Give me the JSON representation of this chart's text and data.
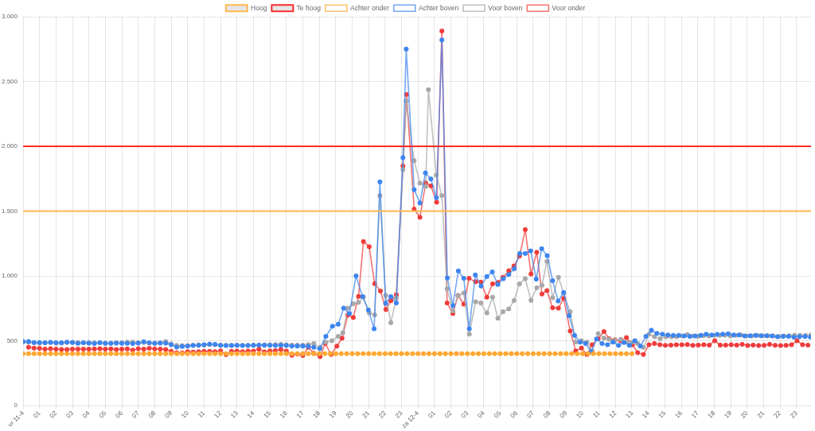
{
  "chart_data": {
    "type": "line",
    "legend": "top",
    "grid": true,
    "marker": "circle",
    "line_style": "solid",
    "xlim": [
      "--04-11T00:00",
      "--04-12T23:53"
    ],
    "ylim": [
      0,
      3000
    ],
    "xticks": [
      {
        "value": "--04-11T00:00",
        "label": "vr 11-4"
      },
      {
        "value": "--04-11T01:00",
        "label": "01"
      },
      {
        "value": "--04-11T02:00",
        "label": "02"
      },
      {
        "value": "--04-11T03:00",
        "label": "03"
      },
      {
        "value": "--04-11T04:00",
        "label": "04"
      },
      {
        "value": "--04-11T05:00",
        "label": "05"
      },
      {
        "value": "--04-11T06:00",
        "label": "06"
      },
      {
        "value": "--04-11T07:00",
        "label": "07"
      },
      {
        "value": "--04-11T08:00",
        "label": "08"
      },
      {
        "value": "--04-11T09:00",
        "label": "09"
      },
      {
        "value": "--04-11T10:00",
        "label": "10"
      },
      {
        "value": "--04-11T11:00",
        "label": "11"
      },
      {
        "value": "--04-11T12:00",
        "label": "12"
      },
      {
        "value": "--04-11T13:00",
        "label": "13"
      },
      {
        "value": "--04-11T14:00",
        "label": "14"
      },
      {
        "value": "--04-11T15:00",
        "label": "15"
      },
      {
        "value": "--04-11T16:00",
        "label": "16"
      },
      {
        "value": "--04-11T17:00",
        "label": "17"
      },
      {
        "value": "--04-11T18:00",
        "label": "18"
      },
      {
        "value": "--04-11T19:00",
        "label": "19"
      },
      {
        "value": "--04-11T20:00",
        "label": "20"
      },
      {
        "value": "--04-11T21:00",
        "label": "21"
      },
      {
        "value": "--04-11T22:00",
        "label": "22"
      },
      {
        "value": "--04-11T23:00",
        "label": "23"
      },
      {
        "value": "--04-12T00:00",
        "label": "za 12-4"
      },
      {
        "value": "--04-12T01:00",
        "label": "01"
      },
      {
        "value": "--04-12T02:00",
        "label": "02"
      },
      {
        "value": "--04-12T03:00",
        "label": "03"
      },
      {
        "value": "--04-12T04:00",
        "label": "04"
      },
      {
        "value": "--04-12T05:00",
        "label": "05"
      },
      {
        "value": "--04-12T06:00",
        "label": "06"
      },
      {
        "value": "--04-12T07:00",
        "label": "07"
      },
      {
        "value": "--04-12T08:00",
        "label": "08"
      },
      {
        "value": "--04-12T09:00",
        "label": "09"
      },
      {
        "value": "--04-12T10:00",
        "label": "10"
      },
      {
        "value": "--04-12T11:00",
        "label": "11"
      },
      {
        "value": "--04-12T12:00",
        "label": "12"
      },
      {
        "value": "--04-12T13:00",
        "label": "13"
      },
      {
        "value": "--04-12T14:00",
        "label": "14"
      },
      {
        "value": "--04-12T15:00",
        "label": "15"
      },
      {
        "value": "--04-12T16:00",
        "label": "16"
      },
      {
        "value": "--04-12T17:00",
        "label": "17"
      },
      {
        "value": "--04-12T18:00",
        "label": "18"
      },
      {
        "value": "--04-12T19:00",
        "label": "19"
      },
      {
        "value": "--04-12T20:00",
        "label": "20"
      },
      {
        "value": "--04-12T21:00",
        "label": "21"
      },
      {
        "value": "--04-12T22:00",
        "label": "22"
      },
      {
        "value": "--04-12T23:00",
        "label": "23"
      }
    ],
    "yticks": [
      0,
      500,
      {
        "value": 1000,
        "label": "1.000"
      },
      {
        "value": 1500,
        "label": "1.500"
      },
      {
        "value": 2000,
        "label": "2.000"
      },
      {
        "value": 2500,
        "label": "2.500"
      },
      {
        "value": 3000,
        "label": "3.000"
      }
    ],
    "ref_lines": [
      {
        "axis": "y",
        "value": 1500,
        "label": "Hoog",
        "color": "#ffb74d"
      },
      {
        "axis": "y",
        "value": 2000,
        "label": "Te hoog",
        "color": "#ff2a2a"
      }
    ],
    "series": [
      {
        "name": "Achter onder",
        "color": "#ffa733",
        "x": [
          "--04-11T00:00",
          "--04-11T00:20",
          "--04-11T00:40",
          "--04-11T01:00",
          "--04-11T01:20",
          "--04-11T01:40",
          "--04-11T02:00",
          "--04-11T02:20",
          "--04-11T02:40",
          "--04-11T03:00",
          "--04-11T03:20",
          "--04-11T03:40",
          "--04-11T04:00",
          "--04-11T04:20",
          "--04-11T04:40",
          "--04-11T05:00",
          "--04-11T05:20",
          "--04-11T05:40",
          "--04-11T06:00",
          "--04-11T06:20",
          "--04-11T06:40",
          "--04-11T07:00",
          "--04-11T07:20",
          "--04-11T07:40",
          "--04-11T08:00",
          "--04-11T08:20",
          "--04-11T08:40",
          "--04-11T09:00",
          "--04-11T09:20",
          "--04-11T09:40",
          "--04-11T10:00",
          "--04-11T10:20",
          "--04-11T10:40",
          "--04-11T11:00",
          "--04-11T11:20",
          "--04-11T11:40",
          "--04-11T12:00",
          "--04-11T12:20",
          "--04-11T12:40",
          "--04-11T13:00",
          "--04-11T13:20",
          "--04-11T13:40",
          "--04-11T14:00",
          "--04-11T14:20",
          "--04-11T14:40",
          "--04-11T15:00",
          "--04-11T15:20",
          "--04-11T15:40",
          "--04-11T16:00",
          "--04-11T16:20",
          "--04-11T16:40",
          "--04-11T17:00",
          "--04-11T17:20",
          "--04-11T17:40",
          "--04-11T18:00",
          "--04-11T18:20",
          "--04-11T18:40",
          "--04-11T19:00",
          "--04-11T19:20",
          "--04-11T19:40",
          "--04-11T20:00",
          "--04-11T20:20",
          "--04-11T20:40",
          "--04-11T21:00",
          "--04-11T21:20",
          "--04-11T21:40",
          "--04-11T22:00",
          "--04-11T22:20",
          "--04-11T22:40",
          "--04-11T23:00",
          "--04-11T23:20",
          "--04-11T23:40",
          "--04-12T00:00",
          "--04-12T00:20",
          "--04-12T00:40",
          "--04-12T01:00",
          "--04-12T01:20",
          "--04-12T01:40",
          "--04-12T02:00",
          "--04-12T02:20",
          "--04-12T02:40",
          "--04-12T03:00",
          "--04-12T03:20",
          "--04-12T03:40",
          "--04-12T04:00",
          "--04-12T04:20",
          "--04-12T04:40",
          "--04-12T05:00",
          "--04-12T05:20",
          "--04-12T05:40",
          "--04-12T06:00",
          "--04-12T06:20",
          "--04-12T06:40",
          "--04-12T07:00",
          "--04-12T07:20",
          "--04-12T07:40",
          "--04-12T08:00",
          "--04-12T08:20",
          "--04-12T08:40",
          "--04-12T09:00",
          "--04-12T09:20",
          "--04-12T09:40",
          "--04-12T10:00",
          "--04-12T10:20",
          "--04-12T10:40",
          "--04-12T11:00",
          "--04-12T11:20",
          "--04-12T11:40",
          "--04-12T12:00",
          "--04-12T12:20",
          "--04-12T12:40",
          "--04-12T13:00"
        ],
        "values": [
          400,
          400,
          400,
          400,
          400,
          400,
          400,
          400,
          400,
          400,
          400,
          400,
          400,
          400,
          400,
          400,
          400,
          400,
          400,
          400,
          400,
          400,
          400,
          400,
          400,
          400,
          400,
          400,
          400,
          400,
          400,
          400,
          400,
          400,
          400,
          400,
          400,
          400,
          400,
          400,
          400,
          400,
          400,
          400,
          400,
          400,
          400,
          400,
          400,
          400,
          400,
          400,
          400,
          400,
          400,
          400,
          400,
          400,
          400,
          400,
          400,
          400,
          400,
          400,
          400,
          400,
          400,
          400,
          400,
          400,
          400,
          400,
          400,
          400,
          400,
          400,
          400,
          400,
          400,
          400,
          400,
          400,
          400,
          400,
          400,
          400,
          400,
          400,
          400,
          400,
          400,
          400,
          400,
          400,
          400,
          400,
          400,
          400,
          400,
          400,
          400,
          400,
          400,
          400,
          400,
          400,
          400,
          400,
          400,
          400,
          400,
          400
        ]
      },
      {
        "name": "Achter boven",
        "color": "#3d85f0",
        "x": [
          "--04-11T00:00",
          "--04-11T00:20",
          "--04-11T00:40",
          "--04-11T01:00",
          "--04-11T01:20",
          "--04-11T01:40",
          "--04-11T02:00",
          "--04-11T02:20",
          "--04-11T02:40",
          "--04-11T03:00",
          "--04-11T03:20",
          "--04-11T03:40",
          "--04-11T04:00",
          "--04-11T04:20",
          "--04-11T04:40",
          "--04-11T05:00",
          "--04-11T05:20",
          "--04-11T05:40",
          "--04-11T06:00",
          "--04-11T06:20",
          "--04-11T06:40",
          "--04-11T07:00",
          "--04-11T07:20",
          "--04-11T07:40",
          "--04-11T08:00",
          "--04-11T08:20",
          "--04-11T08:40",
          "--04-11T09:00",
          "--04-11T09:20",
          "--04-11T09:40",
          "--04-11T10:00",
          "--04-11T10:20",
          "--04-11T10:40",
          "--04-11T11:00",
          "--04-11T11:20",
          "--04-11T11:40",
          "--04-11T12:00",
          "--04-11T12:20",
          "--04-11T12:40",
          "--04-11T13:00",
          "--04-11T13:20",
          "--04-11T13:40",
          "--04-11T14:00",
          "--04-11T14:20",
          "--04-11T14:40",
          "--04-11T15:00",
          "--04-11T15:20",
          "--04-11T15:40",
          "--04-11T16:00",
          "--04-11T16:20",
          "--04-11T16:40",
          "--04-11T17:00",
          "--04-11T17:20",
          "--04-11T17:40",
          "--04-11T18:02",
          "--04-11T18:24",
          "--04-11T18:48",
          "--04-11T19:09",
          "--04-11T19:29",
          "--04-11T19:50",
          "--04-11T20:14",
          "--04-11T20:38",
          "--04-11T20:59",
          "--04-11T21:20",
          "--04-11T21:41",
          "--04-11T22:02",
          "--04-11T22:21",
          "--04-11T22:41",
          "--04-11T23:05",
          "--04-11T23:17",
          "--04-11T23:46",
          "--04-12T00:07",
          "--04-12T00:27",
          "--04-12T00:47",
          "--04-12T01:07",
          "--04-12T01:27",
          "--04-12T01:47",
          "--04-12T02:07",
          "--04-12T02:27",
          "--04-12T02:47",
          "--04-12T03:07",
          "--04-12T03:29",
          "--04-12T03:50",
          "--04-12T04:11",
          "--04-12T04:31",
          "--04-12T04:51",
          "--04-12T05:11",
          "--04-12T05:31",
          "--04-12T05:51",
          "--04-12T06:11",
          "--04-12T06:31",
          "--04-12T06:51",
          "--04-12T07:11",
          "--04-12T07:31",
          "--04-12T07:51",
          "--04-12T08:11",
          "--04-12T08:31",
          "--04-12T08:51",
          "--04-12T09:11",
          "--04-12T09:31",
          "--04-12T09:51",
          "--04-12T10:11",
          "--04-12T10:31",
          "--04-12T10:51",
          "--04-12T11:11",
          "--04-12T11:31",
          "--04-12T11:51",
          "--04-12T12:11",
          "--04-12T12:31",
          "--04-12T12:51",
          "--04-12T13:11",
          "--04-12T13:31",
          "--04-12T13:51",
          "--04-12T14:11",
          "--04-12T14:31",
          "--04-12T14:51",
          "--04-12T15:11",
          "--04-12T15:31",
          "--04-12T15:51",
          "--04-12T16:11",
          "--04-12T16:31",
          "--04-12T16:51",
          "--04-12T17:11",
          "--04-12T17:31",
          "--04-12T17:51",
          "--04-12T18:11",
          "--04-12T18:31",
          "--04-12T18:51",
          "--04-12T19:11",
          "--04-12T19:31",
          "--04-12T19:51",
          "--04-12T20:11",
          "--04-12T20:31",
          "--04-12T20:51",
          "--04-12T21:11",
          "--04-12T21:31",
          "--04-12T21:51",
          "--04-12T22:11",
          "--04-12T22:31",
          "--04-12T22:51",
          "--04-12T23:11",
          "--04-12T23:31",
          "--04-12T23:51"
        ],
        "values": [
          494,
          494,
          486,
          486,
          484,
          488,
          484,
          484,
          490,
          486,
          480,
          484,
          482,
          478,
          484,
          480,
          480,
          482,
          480,
          480,
          478,
          482,
          492,
          484,
          480,
          482,
          482,
          470,
          451,
          455,
          459,
          463,
          465,
          470,
          474,
          472,
          465,
          463,
          463,
          465,
          463,
          463,
          465,
          467,
          465,
          465,
          463,
          465,
          463,
          459,
          459,
          459,
          455,
          449,
          439,
          534,
          612,
          628,
          751,
          710,
          1000,
          840,
          738,
          592,
          1725,
          788,
          840,
          791,
          1912,
          2750,
          1665,
          1563,
          1795,
          1748,
          1604,
          2820,
          985,
          772,
          1038,
          981,
          592,
          1007,
          922,
          996,
          1030,
          934,
          979,
          1010,
          1055,
          1173,
          1173,
          1193,
          975,
          1210,
          1157,
          963,
          806,
          873,
          694,
          541,
          490,
          479,
          414,
          514,
          479,
          469,
          490,
          465,
          486,
          465,
          500,
          459,
          534,
          581,
          557,
          551,
          545,
          541,
          541,
          537,
          534,
          537,
          541,
          551,
          545,
          549,
          551,
          553,
          545,
          545,
          537,
          539,
          541,
          539,
          539,
          537,
          530,
          534,
          534,
          528,
          532,
          532,
          528
        ]
      },
      {
        "name": "Voor boven",
        "color": "#a8a8a8",
        "x": [
          "--04-11T00:00",
          "--04-11T00:20",
          "--04-11T00:40",
          "--04-11T01:00",
          "--04-11T01:20",
          "--04-11T01:40",
          "--04-11T02:00",
          "--04-11T02:20",
          "--04-11T02:40",
          "--04-11T03:00",
          "--04-11T03:20",
          "--04-11T03:40",
          "--04-11T04:00",
          "--04-11T04:20",
          "--04-11T04:40",
          "--04-11T05:00",
          "--04-11T05:20",
          "--04-11T05:40",
          "--04-11T06:00",
          "--04-11T06:20",
          "--04-11T06:40",
          "--04-11T07:00",
          "--04-11T07:20",
          "--04-11T07:40",
          "--04-11T08:00",
          "--04-11T08:20",
          "--04-11T08:40",
          "--04-11T09:00",
          "--04-11T09:20",
          "--04-11T09:40",
          "--04-11T10:00",
          "--04-11T10:20",
          "--04-11T10:40",
          "--04-11T11:00",
          "--04-11T11:20",
          "--04-11T11:40",
          "--04-11T12:00",
          "--04-11T12:20",
          "--04-11T12:40",
          "--04-11T13:00",
          "--04-11T13:20",
          "--04-11T13:40",
          "--04-11T14:00",
          "--04-11T14:20",
          "--04-11T14:40",
          "--04-11T15:00",
          "--04-11T15:20",
          "--04-11T15:40",
          "--04-11T16:00",
          "--04-11T16:20",
          "--04-11T16:40",
          "--04-11T17:00",
          "--04-11T17:20",
          "--04-11T17:40",
          "--04-11T18:03",
          "--04-11T18:24",
          "--04-11T18:46",
          "--04-11T19:09",
          "--04-11T19:26",
          "--04-11T19:44",
          "--04-11T20:04",
          "--04-11T20:23",
          "--04-11T20:41",
          "--04-11T21:02",
          "--04-11T21:22",
          "--04-11T21:41",
          "--04-11T22:02",
          "--04-11T22:21",
          "--04-11T22:41",
          "--04-11T23:05",
          "--04-11T23:17",
          "--04-11T23:46",
          "--04-12T00:07",
          "--04-12T00:28",
          "--04-12T00:38",
          "--04-12T01:07",
          "--04-12T01:27",
          "--04-12T01:46",
          "--04-12T02:07",
          "--04-12T02:26",
          "--04-12T02:47",
          "--04-12T03:07",
          "--04-12T03:30",
          "--04-12T03:49",
          "--04-12T04:11",
          "--04-12T04:32",
          "--04-12T04:51",
          "--04-12T05:10",
          "--04-12T05:31",
          "--04-12T05:50",
          "--04-12T06:10",
          "--04-12T06:31",
          "--04-12T06:52",
          "--04-12T07:13",
          "--04-12T07:32",
          "--04-12T07:50",
          "--04-12T08:11",
          "--04-12T08:32",
          "--04-12T08:51",
          "--04-12T09:15",
          "--04-12T09:35",
          "--04-12T09:56",
          "--04-12T10:16",
          "--04-12T10:35",
          "--04-12T10:57",
          "--04-12T11:18",
          "--04-12T11:37",
          "--04-12T11:58",
          "--04-12T12:19",
          "--04-12T12:40",
          "--04-12T13:02",
          "--04-12T13:21",
          "--04-12T13:42",
          "--04-12T14:02",
          "--04-12T14:22",
          "--04-12T14:43",
          "--04-12T15:04",
          "--04-12T15:24",
          "--04-12T15:43",
          "--04-12T16:03",
          "--04-12T16:22",
          "--04-12T16:42",
          "--04-12T17:01",
          "--04-12T17:21",
          "--04-12T17:41",
          "--04-12T18:00",
          "--04-12T18:20",
          "--04-12T18:39",
          "--04-12T18:59",
          "--04-12T19:18",
          "--04-12T19:38",
          "--04-12T19:57",
          "--04-12T20:17",
          "--04-12T20:37",
          "--04-12T20:56",
          "--04-12T21:16",
          "--04-12T21:35",
          "--04-12T21:55",
          "--04-12T22:14",
          "--04-12T22:34",
          "--04-12T22:53",
          "--04-12T23:13",
          "--04-12T23:33",
          "--04-12T23:52"
        ],
        "values": [
          490,
          488,
          484,
          482,
          484,
          486,
          482,
          482,
          486,
          488,
          486,
          484,
          486,
          484,
          484,
          482,
          482,
          484,
          484,
          490,
          490,
          484,
          486,
          482,
          482,
          486,
          494,
          475,
          465,
          463,
          463,
          467,
          469,
          467,
          471,
          469,
          467,
          465,
          465,
          465,
          465,
          465,
          467,
          467,
          469,
          469,
          471,
          473,
          469,
          467,
          467,
          467,
          471,
          479,
          449,
          490,
          500,
          534,
          561,
          751,
          785,
          796,
          837,
          714,
          700,
          1619,
          850,
          640,
          829,
          1820,
          2350,
          1889,
          1717,
          1690,
          2437,
          1778,
          1620,
          900,
          730,
          848,
          868,
          551,
          801,
          791,
          714,
          836,
          673,
          724,
          745,
          810,
          938,
          979,
          812,
          908,
          928,
          1112,
          832,
          989,
          867,
          724,
          490,
          500,
          490,
          418,
          555,
          520,
          510,
          500,
          510,
          490,
          490,
          479,
          449,
          551,
          530,
          516,
          530,
          530,
          530,
          537,
          547,
          537,
          534,
          539,
          537,
          541,
          541,
          543,
          537,
          541,
          545,
          537,
          537,
          541,
          539,
          539,
          537,
          534,
          537,
          539,
          543,
          541,
          541,
          545
        ]
      },
      {
        "name": "Voor onder",
        "color": "#f03c3c",
        "x": [
          "--04-11T00:20",
          "--04-11T00:40",
          "--04-11T01:00",
          "--04-11T01:20",
          "--04-11T01:40",
          "--04-11T02:00",
          "--04-11T02:20",
          "--04-11T02:40",
          "--04-11T03:00",
          "--04-11T03:20",
          "--04-11T03:40",
          "--04-11T04:00",
          "--04-11T04:20",
          "--04-11T04:40",
          "--04-11T05:00",
          "--04-11T05:20",
          "--04-11T05:40",
          "--04-11T06:00",
          "--04-11T06:20",
          "--04-11T06:40",
          "--04-11T07:00",
          "--04-11T07:20",
          "--04-11T07:40",
          "--04-11T08:00",
          "--04-11T08:20",
          "--04-11T08:40",
          "--04-11T09:00",
          "--04-11T09:20",
          "--04-11T09:40",
          "--04-11T10:00",
          "--04-11T10:20",
          "--04-11T10:40",
          "--04-11T11:00",
          "--04-11T11:20",
          "--04-11T11:40",
          "--04-11T12:00",
          "--04-11T12:20",
          "--04-11T12:40",
          "--04-11T13:00",
          "--04-11T13:20",
          "--04-11T13:40",
          "--04-11T14:00",
          "--04-11T14:20",
          "--04-11T14:40",
          "--04-11T15:00",
          "--04-11T15:20",
          "--04-11T15:40",
          "--04-11T16:00",
          "--04-11T16:20",
          "--04-11T16:40",
          "--04-11T17:00",
          "--04-11T17:20",
          "--04-11T17:40",
          "--04-11T18:03",
          "--04-11T18:22",
          "--04-11T18:43",
          "--04-11T19:04",
          "--04-11T19:23",
          "--04-11T19:44",
          "--04-11T20:04",
          "--04-11T20:23",
          "--04-11T20:41",
          "--04-11T21:02",
          "--04-11T21:22",
          "--04-11T21:43",
          "--04-11T22:03",
          "--04-11T22:21",
          "--04-11T22:41",
          "--04-11T23:05",
          "--04-11T23:18",
          "--04-11T23:46",
          "--04-12T00:07",
          "--04-12T00:28",
          "--04-12T00:47",
          "--04-12T01:08",
          "--04-12T01:27",
          "--04-12T01:46",
          "--04-12T02:07",
          "--04-12T02:26",
          "--04-12T02:47",
          "--04-12T03:06",
          "--04-12T03:30",
          "--04-12T03:49",
          "--04-12T04:11",
          "--04-12T04:32",
          "--04-12T04:51",
          "--04-12T05:10",
          "--04-12T05:31",
          "--04-12T05:50",
          "--04-12T06:10",
          "--04-12T06:31",
          "--04-12T06:52",
          "--04-12T07:13",
          "--04-12T07:32",
          "--04-12T07:50",
          "--04-12T08:11",
          "--04-12T08:32",
          "--04-12T08:51",
          "--04-12T09:15",
          "--04-12T09:35",
          "--04-12T09:56",
          "--04-12T10:16",
          "--04-12T10:35",
          "--04-12T10:57",
          "--04-12T11:18",
          "--04-12T11:37",
          "--04-12T11:58",
          "--04-12T12:19",
          "--04-12T12:40",
          "--04-12T13:02",
          "--04-12T13:21",
          "--04-12T13:42",
          "--04-12T14:02",
          "--04-12T14:22",
          "--04-12T14:42",
          "--04-12T15:02",
          "--04-12T15:22",
          "--04-12T15:42",
          "--04-12T16:02",
          "--04-12T16:22",
          "--04-12T16:42",
          "--04-12T17:02",
          "--04-12T17:22",
          "--04-12T17:42",
          "--04-12T18:02",
          "--04-12T18:22",
          "--04-12T18:42",
          "--04-12T19:02",
          "--04-12T19:22",
          "--04-12T19:42",
          "--04-12T20:02",
          "--04-12T20:22",
          "--04-12T20:42",
          "--04-12T21:02",
          "--04-12T21:22",
          "--04-12T21:42",
          "--04-12T22:02",
          "--04-12T22:22",
          "--04-12T22:42",
          "--04-12T23:02",
          "--04-12T23:22",
          "--04-12T23:42"
        ],
        "values": [
          449,
          443,
          441,
          435,
          439,
          435,
          433,
          433,
          435,
          435,
          435,
          435,
          437,
          439,
          435,
          437,
          433,
          435,
          437,
          428,
          439,
          435,
          441,
          437,
          435,
          433,
          418,
          408,
          406,
          416,
          412,
          416,
          418,
          418,
          416,
          422,
          392,
          418,
          420,
          416,
          420,
          420,
          435,
          414,
          422,
          424,
          433,
          420,
          388,
          398,
          386,
          449,
          404,
          377,
          479,
          394,
          459,
          520,
          698,
          680,
          842,
          1265,
          1226,
          940,
          883,
          741,
          809,
          854,
          1848,
          2400,
          1515,
          1452,
          1718,
          1695,
          1569,
          2890,
          792,
          710,
          850,
          782,
          981,
          956,
          953,
          836,
          938,
          949,
          989,
          1040,
          1077,
          1153,
          1357,
          1016,
          1183,
          861,
          887,
          755,
          751,
          826,
          575,
          422,
          443,
          394,
          469,
          516,
          571,
          516,
          506,
          500,
          524,
          469,
          408,
          394,
          469,
          479,
          469,
          465,
          467,
          469,
          469,
          471,
          465,
          467,
          469,
          467,
          500,
          467,
          467,
          469,
          467,
          473,
          463,
          467,
          463,
          465,
          473,
          465,
          463,
          465,
          469,
          500,
          469,
          467
        ]
      }
    ]
  }
}
